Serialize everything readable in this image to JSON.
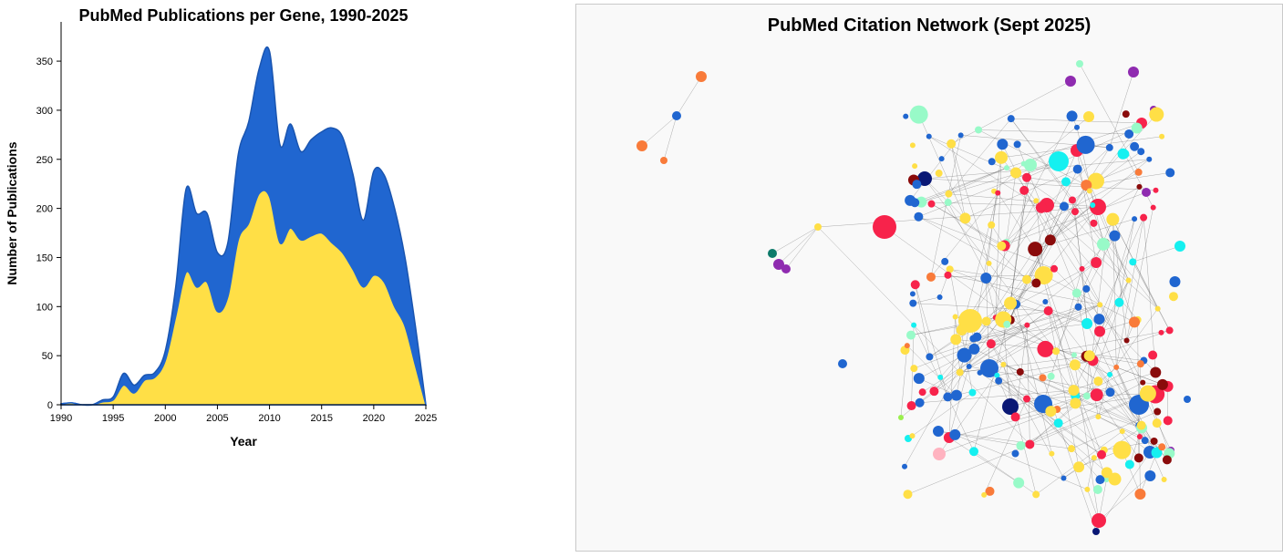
{
  "chart_data": [
    {
      "type": "area",
      "stacked": true,
      "title": "PubMed Publications per Gene, 1990-2025",
      "xlabel": "Year",
      "ylabel": "Number of Publications",
      "xlim": [
        1990,
        2025
      ],
      "ylim": [
        0,
        390
      ],
      "xticks": [
        1990,
        1995,
        2000,
        2005,
        2010,
        2015,
        2020,
        2025
      ],
      "yticks": [
        0,
        50,
        100,
        150,
        200,
        250,
        300,
        350
      ],
      "grid": false,
      "x": [
        1990,
        1991,
        1992,
        1993,
        1994,
        1995,
        1996,
        1997,
        1998,
        1999,
        2000,
        2001,
        2002,
        2003,
        2004,
        2005,
        2006,
        2007,
        2008,
        2009,
        2010,
        2011,
        2012,
        2013,
        2014,
        2015,
        2016,
        2017,
        2018,
        2019,
        2020,
        2021,
        2022,
        2023,
        2024,
        2025
      ],
      "series": [
        {
          "color": "#ffdf46",
          "values": [
            1,
            2,
            0,
            0,
            3,
            5,
            20,
            12,
            25,
            28,
            45,
            90,
            135,
            120,
            125,
            95,
            110,
            168,
            185,
            215,
            212,
            165,
            180,
            168,
            172,
            175,
            165,
            155,
            138,
            120,
            132,
            125,
            100,
            80,
            40,
            0
          ]
        },
        {
          "color": "#2066d0",
          "values": [
            0,
            0,
            0,
            0,
            2,
            3,
            12,
            8,
            5,
            5,
            10,
            30,
            85,
            75,
            70,
            60,
            55,
            87,
            103,
            127,
            148,
            100,
            106,
            90,
            98,
            103,
            117,
            118,
            97,
            68,
            106,
            109,
            100,
            70,
            40,
            0
          ]
        }
      ]
    },
    {
      "type": "network",
      "title": "PubMed Citation Network (Sept 2025)",
      "edge_color": "#555555",
      "node_colors": [
        "#ffdf46",
        "#2066d0",
        "#f7234b",
        "#8a0b0b",
        "#98fac8",
        "#15f0f0",
        "#f97b3a",
        "#0a1875",
        "#8f2bb0",
        "#0d7a6a",
        "#9aef4d",
        "#7c7a2a",
        "#ffb3c0"
      ]
    }
  ]
}
